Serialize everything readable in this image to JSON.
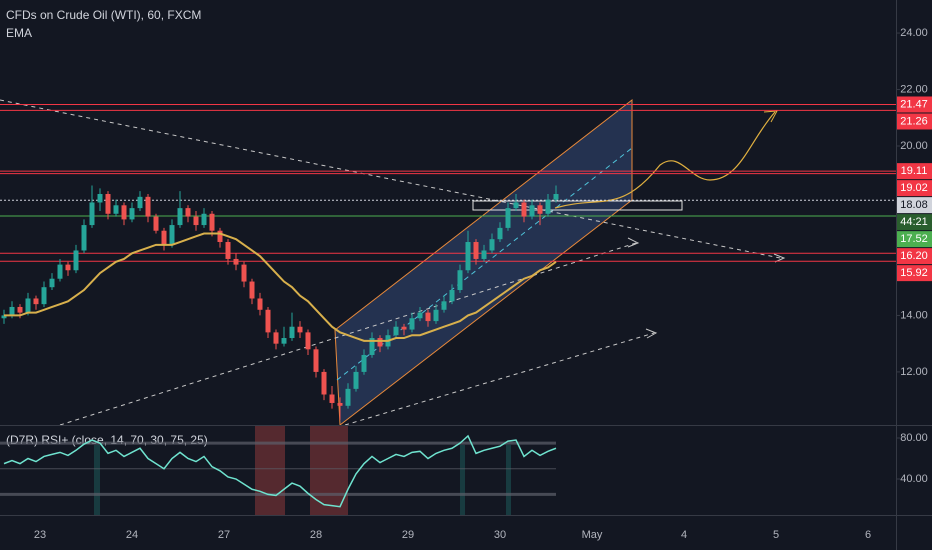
{
  "chart_data": {
    "type": "candlestick",
    "title": "CFDs on Crude Oil (WTI), 60, FXCM",
    "indicator": "EMA",
    "rsi_title": "(D7R) RSI+ (close, 14, 70, 30, 75, 25)",
    "xlabels": [
      "23",
      "24",
      "27",
      "28",
      "29",
      "30",
      "May",
      "4",
      "5",
      "6"
    ],
    "ylim": [
      10.12,
      25.17
    ],
    "yticks": [
      {
        "value": 24,
        "label": "24.00"
      },
      {
        "value": 22,
        "label": "22.00"
      },
      {
        "value": 20,
        "label": "20.00"
      },
      {
        "value": 14,
        "label": "14.00"
      },
      {
        "value": 12,
        "label": "12.00"
      }
    ],
    "up_color": "#26a69a",
    "down_color": "#ef5350",
    "candles": [
      [
        13.9,
        14.2,
        13.7,
        14.0
      ],
      [
        14.0,
        14.5,
        13.9,
        14.3
      ],
      [
        14.3,
        14.4,
        13.9,
        14.1
      ],
      [
        14.1,
        14.8,
        14.0,
        14.6
      ],
      [
        14.6,
        14.7,
        14.2,
        14.4
      ],
      [
        14.4,
        15.2,
        14.3,
        15.0
      ],
      [
        15.0,
        15.5,
        14.9,
        15.3
      ],
      [
        15.3,
        16.0,
        15.2,
        15.8
      ],
      [
        15.8,
        15.9,
        15.4,
        15.6
      ],
      [
        15.6,
        16.5,
        15.5,
        16.3
      ],
      [
        16.3,
        17.4,
        16.2,
        17.2
      ],
      [
        17.2,
        18.6,
        17.1,
        18.0
      ],
      [
        18.0,
        18.5,
        17.7,
        18.3
      ],
      [
        18.3,
        18.4,
        17.4,
        17.6
      ],
      [
        17.6,
        18.1,
        17.5,
        17.9
      ],
      [
        17.9,
        18.0,
        17.2,
        17.4
      ],
      [
        17.4,
        18.0,
        17.3,
        17.8
      ],
      [
        17.8,
        18.4,
        17.7,
        18.2
      ],
      [
        18.2,
        18.3,
        17.3,
        17.5
      ],
      [
        17.5,
        17.6,
        16.9,
        17.0
      ],
      [
        17.0,
        17.1,
        16.3,
        16.5
      ],
      [
        16.5,
        17.4,
        16.4,
        17.2
      ],
      [
        17.2,
        18.4,
        17.1,
        17.8
      ],
      [
        17.8,
        17.9,
        17.3,
        17.5
      ],
      [
        17.5,
        17.7,
        17.0,
        17.2
      ],
      [
        17.2,
        17.8,
        17.1,
        17.6
      ],
      [
        17.6,
        17.7,
        16.8,
        17.0
      ],
      [
        17.0,
        17.1,
        16.4,
        16.6
      ],
      [
        16.6,
        16.7,
        15.8,
        16.0
      ],
      [
        16.0,
        16.2,
        15.6,
        15.8
      ],
      [
        15.8,
        15.9,
        15.0,
        15.2
      ],
      [
        15.2,
        15.3,
        14.4,
        14.6
      ],
      [
        14.6,
        14.8,
        14.0,
        14.2
      ],
      [
        14.2,
        14.3,
        13.2,
        13.4
      ],
      [
        13.4,
        13.5,
        12.8,
        13.0
      ],
      [
        13.0,
        13.6,
        12.9,
        13.2
      ],
      [
        13.2,
        14.1,
        13.1,
        13.6
      ],
      [
        13.6,
        13.8,
        13.2,
        13.4
      ],
      [
        13.4,
        13.5,
        12.6,
        12.8
      ],
      [
        12.8,
        12.9,
        11.8,
        12.0
      ],
      [
        12.0,
        12.1,
        11.0,
        11.2
      ],
      [
        11.2,
        11.5,
        10.7,
        10.9
      ],
      [
        10.9,
        11.1,
        10.3,
        10.8
      ],
      [
        10.8,
        11.6,
        10.7,
        11.4
      ],
      [
        11.4,
        12.2,
        11.3,
        12.0
      ],
      [
        12.0,
        12.8,
        11.9,
        12.6
      ],
      [
        12.6,
        13.4,
        12.5,
        13.2
      ],
      [
        13.2,
        13.3,
        12.7,
        12.9
      ],
      [
        12.9,
        13.5,
        12.8,
        13.3
      ],
      [
        13.3,
        13.8,
        13.2,
        13.6
      ],
      [
        13.6,
        13.7,
        13.3,
        13.5
      ],
      [
        13.5,
        14.1,
        13.4,
        13.9
      ],
      [
        13.9,
        14.3,
        13.8,
        14.1
      ],
      [
        14.1,
        14.2,
        13.6,
        13.8
      ],
      [
        13.8,
        14.4,
        13.7,
        14.2
      ],
      [
        14.2,
        14.7,
        14.1,
        14.5
      ],
      [
        14.5,
        15.1,
        14.4,
        14.9
      ],
      [
        14.9,
        15.8,
        14.8,
        15.6
      ],
      [
        15.6,
        17.0,
        15.5,
        16.6
      ],
      [
        16.6,
        16.7,
        15.8,
        16.0
      ],
      [
        16.0,
        16.5,
        15.9,
        16.3
      ],
      [
        16.3,
        16.9,
        16.2,
        16.7
      ],
      [
        16.7,
        17.3,
        16.6,
        17.1
      ],
      [
        17.1,
        18.0,
        17.0,
        17.8
      ],
      [
        17.8,
        18.3,
        17.7,
        18.0
      ],
      [
        18.0,
        18.1,
        17.3,
        17.5
      ],
      [
        17.5,
        18.1,
        17.4,
        17.9
      ],
      [
        17.9,
        18.0,
        17.2,
        17.6
      ],
      [
        17.6,
        18.3,
        17.5,
        18.1
      ],
      [
        18.1,
        18.6,
        18.0,
        18.3
      ]
    ],
    "ema": {
      "color": "#d8b04c",
      "values": [
        14.0,
        14.0,
        14.0,
        14.1,
        14.1,
        14.2,
        14.3,
        14.4,
        14.5,
        14.7,
        14.9,
        15.2,
        15.5,
        15.7,
        15.9,
        16.0,
        16.2,
        16.3,
        16.4,
        16.5,
        16.5,
        16.5,
        16.6,
        16.7,
        16.8,
        16.9,
        16.9,
        16.9,
        16.8,
        16.7,
        16.5,
        16.3,
        16.1,
        15.8,
        15.5,
        15.2,
        15.0,
        14.7,
        14.5,
        14.2,
        13.9,
        13.6,
        13.4,
        13.3,
        13.2,
        13.1,
        13.1,
        13.1,
        13.1,
        13.2,
        13.2,
        13.3,
        13.3,
        13.4,
        13.5,
        13.6,
        13.7,
        13.8,
        14.0,
        14.1,
        14.3,
        14.5,
        14.7,
        14.9,
        15.1,
        15.3,
        15.4,
        15.6,
        15.7,
        15.9
      ]
    },
    "levels": [
      {
        "value": 21.47,
        "label": "21.47",
        "color": "#f23645"
      },
      {
        "value": 21.26,
        "label": "21.26",
        "color": "#f23645"
      },
      {
        "value": 19.11,
        "label": "19.11",
        "color": "#f23645"
      },
      {
        "value": 19.02,
        "label": "19.02",
        "color": "#f23645"
      },
      {
        "value": 18.08,
        "label": "18.08",
        "color": "#d1d4dc"
      },
      {
        "value": 17.52,
        "label": "17.52",
        "color": "#4caf50",
        "countdown": "44:21"
      },
      {
        "value": 16.2,
        "label": "16.20",
        "color": "#f23645"
      },
      {
        "value": 15.92,
        "label": "15.92",
        "color": "#f23645"
      }
    ],
    "rsi": {
      "color": "#6fe3cf",
      "ylim": [
        4.9,
        91.7
      ],
      "yticks": [
        {
          "value": 80,
          "label": "80.00"
        },
        {
          "value": 40,
          "label": "40.00"
        }
      ],
      "bands": [
        75,
        50,
        25
      ],
      "values": [
        55,
        58,
        55,
        60,
        57,
        62,
        64,
        66,
        63,
        68,
        74,
        78,
        75,
        65,
        68,
        62,
        66,
        70,
        60,
        55,
        50,
        60,
        66,
        60,
        57,
        62,
        52,
        48,
        42,
        40,
        35,
        30,
        28,
        25,
        24,
        30,
        36,
        33,
        26,
        20,
        15,
        14,
        13,
        30,
        45,
        55,
        62,
        56,
        60,
        64,
        62,
        66,
        67,
        60,
        65,
        68,
        70,
        75,
        82,
        65,
        68,
        70,
        72,
        77,
        78,
        62,
        68,
        63,
        67,
        70
      ]
    }
  }
}
